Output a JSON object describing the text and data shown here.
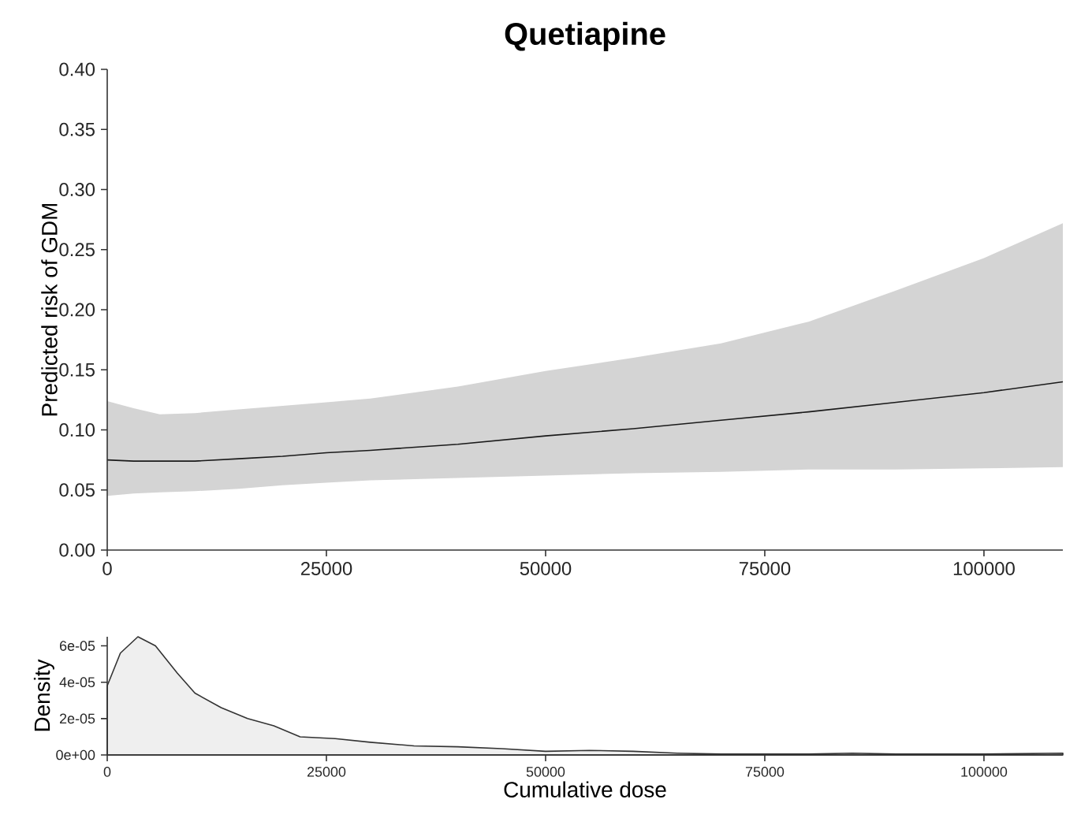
{
  "chart_data": [
    {
      "type": "line",
      "title": "Quetiapine",
      "ylabel": "Predicted risk of GDM",
      "x": [
        0,
        3000,
        6000,
        10000,
        15000,
        20000,
        25000,
        30000,
        40000,
        50000,
        60000,
        70000,
        80000,
        90000,
        100000,
        109000
      ],
      "series": [
        {
          "color": "#1a1a1a",
          "values": [
            0.075,
            0.074,
            0.074,
            0.074,
            0.076,
            0.078,
            0.081,
            0.083,
            0.088,
            0.095,
            0.101,
            0.108,
            0.115,
            0.123,
            0.131,
            0.14
          ],
          "lower": [
            0.045,
            0.047,
            0.048,
            0.049,
            0.051,
            0.054,
            0.056,
            0.058,
            0.06,
            0.062,
            0.064,
            0.065,
            0.067,
            0.067,
            0.068,
            0.069
          ],
          "upper": [
            0.124,
            0.118,
            0.113,
            0.114,
            0.117,
            0.12,
            0.123,
            0.126,
            0.136,
            0.149,
            0.16,
            0.172,
            0.19,
            0.216,
            0.243,
            0.272
          ]
        }
      ],
      "xlim": [
        0,
        109000
      ],
      "ylim": [
        0,
        0.4
      ],
      "xticks": [
        0,
        25000,
        50000,
        75000,
        100000
      ],
      "yticks": [
        {
          "value": 0,
          "label": "0.00"
        },
        {
          "value": 0.05,
          "label": "0.05"
        },
        {
          "value": 0.1,
          "label": "0.10"
        },
        {
          "value": 0.15,
          "label": "0.15"
        },
        {
          "value": 0.2,
          "label": "0.20"
        },
        {
          "value": 0.25,
          "label": "0.25"
        },
        {
          "value": 0.3,
          "label": "0.30"
        },
        {
          "value": 0.35,
          "label": "0.35"
        },
        {
          "value": 0.4,
          "label": "0.40"
        }
      ]
    },
    {
      "type": "area",
      "xlabel": "Cumulative dose",
      "ylabel": "Density",
      "x": [
        0,
        1500,
        3500,
        5500,
        8000,
        10000,
        13000,
        16000,
        19000,
        22000,
        26000,
        30000,
        35000,
        40000,
        45000,
        50000,
        55000,
        60000,
        65000,
        70000,
        80000,
        85000,
        90000,
        100000,
        109000
      ],
      "series": [
        {
          "color": "#efefef",
          "values": [
            3.8e-05,
            5.6e-05,
            6.5e-05,
            6e-05,
            4.5e-05,
            3.4e-05,
            2.6e-05,
            2e-05,
            1.6e-05,
            1e-05,
            9e-06,
            7e-06,
            5e-06,
            4.5e-06,
            3.5e-06,
            2e-06,
            2.5e-06,
            2e-06,
            1e-06,
            5e-07,
            5e-07,
            1e-06,
            5e-07,
            5e-07,
            1e-06
          ]
        }
      ],
      "xlim": [
        0,
        109000
      ],
      "ylim": [
        0,
        6.5e-05
      ],
      "xticks": [
        0,
        25000,
        50000,
        75000,
        100000
      ],
      "yticks": [
        {
          "value": 0,
          "label": "0e+00"
        },
        {
          "value": 2e-05,
          "label": "2e-05"
        },
        {
          "value": 4e-05,
          "label": "4e-05"
        },
        {
          "value": 6e-05,
          "label": "6e-05"
        }
      ]
    }
  ]
}
